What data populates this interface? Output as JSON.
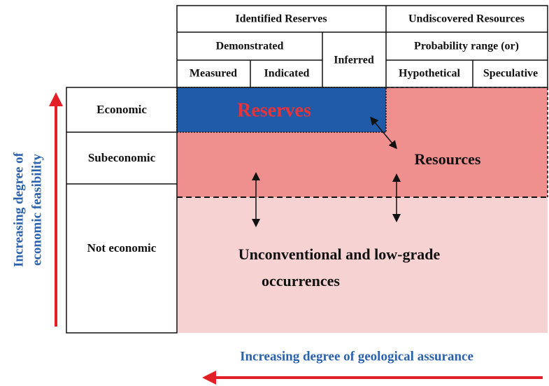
{
  "header": {
    "identified": "Identified Reserves",
    "undiscovered": "Undiscovered Resources",
    "demonstrated": "Demonstrated",
    "inferred": "Inferred",
    "probability": "Probability range (or)",
    "measured": "Measured",
    "indicated": "Indicated",
    "hypothetical": "Hypothetical",
    "speculative": "Speculative"
  },
  "rows": [
    "Economic",
    "Subeconomic",
    "Not economic"
  ],
  "regions": {
    "reserves": "Reserves",
    "resources": "Resources",
    "unconventional": [
      "Unconventional and low-grade",
      "occurrences"
    ]
  },
  "axes": {
    "vertical": [
      "Increasing degree of",
      "economic feasibility"
    ],
    "horizontal": "Increasing degree of geological assurance"
  }
}
